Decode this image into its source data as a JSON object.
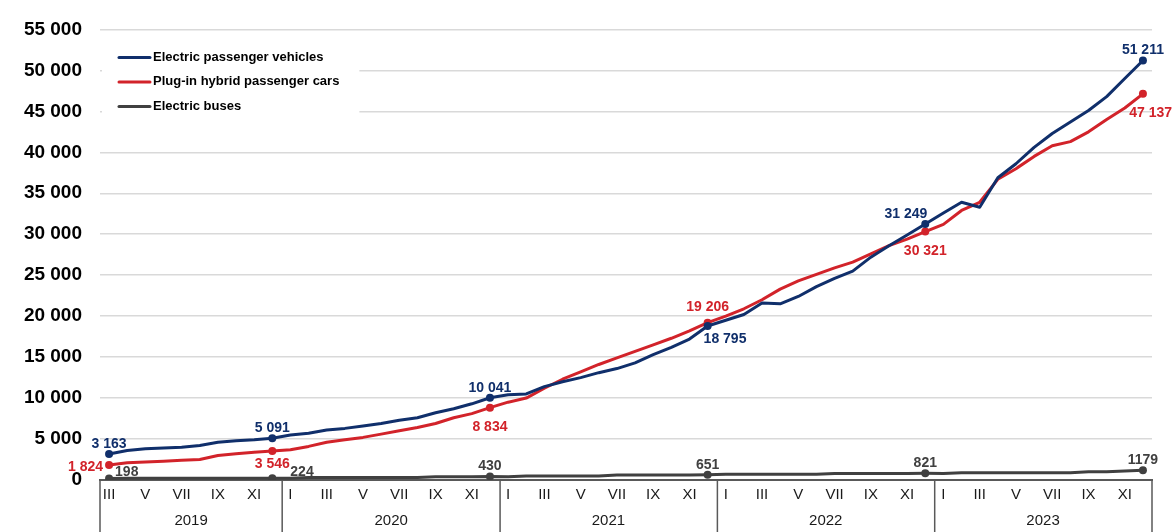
{
  "chart_data": {
    "type": "line",
    "categories": [
      "III",
      null,
      "V",
      null,
      "VII",
      null,
      "IX",
      null,
      "XI",
      null,
      "I",
      null,
      "III",
      null,
      "V",
      null,
      "VII",
      null,
      "IX",
      null,
      "XI",
      null,
      "I",
      null,
      "III",
      null,
      "V",
      null,
      "VII",
      null,
      "IX",
      null,
      "XI",
      null,
      "I",
      null,
      "III",
      null,
      "V",
      null,
      "VII",
      null,
      "IX",
      null,
      "XI",
      null,
      "I",
      null,
      "III",
      null,
      "V",
      null,
      "VII",
      null,
      "IX",
      null,
      "XI",
      null
    ],
    "x2lim": [
      "2019-03-01",
      "2024-01-01"
    ],
    "x2ticks": [
      {
        "value": "2019-08-01",
        "label": "2019"
      },
      {
        "value": "2020-07-02",
        "label": "2020"
      },
      {
        "value": "2021-07-02",
        "label": "2021"
      },
      {
        "value": "2022-07-02",
        "label": "2022"
      },
      {
        "value": "2023-07-02",
        "label": "2023"
      }
    ],
    "ylim": [
      0,
      55000
    ],
    "yticks": [
      0,
      {
        "value": 5000,
        "label": "5 000"
      },
      {
        "value": 10000,
        "label": "10 000"
      },
      {
        "value": 15000,
        "label": "15 000"
      },
      {
        "value": 20000,
        "label": "20 000"
      },
      {
        "value": 25000,
        "label": "25 000"
      },
      {
        "value": 30000,
        "label": "30 000"
      },
      {
        "value": 35000,
        "label": "35 000"
      },
      {
        "value": 40000,
        "label": "40 000"
      },
      {
        "value": 45000,
        "label": "45 000"
      },
      {
        "value": 50000,
        "label": "50 000"
      },
      {
        "value": 55000,
        "label": "55 000"
      }
    ],
    "grid": "y",
    "legend": "top left",
    "series": [
      {
        "name": "Electric passenger vehicles",
        "color": "#102f6b",
        "values": [
          3163,
          3600,
          3800,
          3900,
          4000,
          4200,
          4600,
          4800,
          4900,
          5091,
          5500,
          5700,
          6100,
          6300,
          6600,
          6900,
          7300,
          7600,
          8200,
          8700,
          9300,
          10041,
          10400,
          10500,
          11400,
          12000,
          12500,
          13100,
          13600,
          14300,
          15300,
          16200,
          17200,
          18795,
          19500,
          20200,
          21600,
          21500,
          22400,
          23600,
          24600,
          25500,
          27200,
          28600,
          29900,
          31249,
          32600,
          33900,
          33300,
          36900,
          38600,
          40600,
          42300,
          43700,
          45100,
          46800,
          49000,
          51211
        ],
        "value_labels": [
          "3 163",
          null,
          null,
          null,
          null,
          null,
          null,
          null,
          null,
          "5 091",
          null,
          null,
          null,
          null,
          null,
          null,
          null,
          null,
          null,
          null,
          null,
          "10 041",
          null,
          null,
          null,
          null,
          null,
          null,
          null,
          null,
          null,
          null,
          null,
          "18 795",
          null,
          null,
          null,
          null,
          null,
          null,
          null,
          null,
          null,
          null,
          null,
          "31 249",
          null,
          null,
          null,
          null,
          null,
          null,
          null,
          null,
          null,
          null,
          null,
          "51 211"
        ]
      },
      {
        "name": "Plug-in hybrid passenger cars",
        "color": "#d2232a",
        "values": [
          1824,
          2100,
          2200,
          2300,
          2400,
          2500,
          3000,
          3200,
          3400,
          3546,
          3700,
          4100,
          4600,
          4900,
          5200,
          5600,
          6000,
          6400,
          6900,
          7600,
          8100,
          8834,
          9500,
          10000,
          11200,
          12300,
          13200,
          14100,
          14900,
          15700,
          16500,
          17300,
          18200,
          19206,
          20000,
          20900,
          22000,
          23300,
          24300,
          25100,
          25900,
          26600,
          27600,
          28600,
          29400,
          30321,
          31200,
          32900,
          33900,
          36700,
          38000,
          39500,
          40800,
          41300,
          42500,
          44000,
          45400,
          47137
        ],
        "value_labels": [
          "1 824",
          null,
          null,
          null,
          null,
          null,
          null,
          null,
          null,
          "3 546",
          null,
          null,
          null,
          null,
          null,
          null,
          null,
          null,
          null,
          null,
          null,
          "8 834",
          null,
          null,
          null,
          null,
          null,
          null,
          null,
          null,
          null,
          null,
          null,
          "19 206",
          null,
          null,
          null,
          null,
          null,
          null,
          null,
          null,
          null,
          null,
          null,
          "30 321",
          null,
          null,
          null,
          null,
          null,
          null,
          null,
          null,
          null,
          null,
          null,
          "47 137"
        ]
      },
      {
        "name": "Electric buses",
        "color": "#404040",
        "values": [
          198,
          200,
          200,
          200,
          200,
          200,
          200,
          200,
          200,
          224,
          200,
          300,
          300,
          300,
          300,
          300,
          300,
          300,
          400,
          400,
          400,
          430,
          400,
          500,
          500,
          500,
          500,
          500,
          600,
          600,
          600,
          600,
          600,
          651,
          700,
          700,
          700,
          700,
          700,
          700,
          800,
          800,
          800,
          800,
          800,
          821,
          800,
          900,
          900,
          900,
          900,
          900,
          900,
          900,
          1000,
          1000,
          1100,
          1179
        ],
        "value_labels": [
          "198",
          null,
          null,
          null,
          null,
          null,
          null,
          null,
          null,
          "224",
          null,
          null,
          null,
          null,
          null,
          null,
          null,
          null,
          null,
          null,
          null,
          "430",
          null,
          null,
          null,
          null,
          null,
          null,
          null,
          null,
          null,
          null,
          null,
          "651",
          null,
          null,
          null,
          null,
          null,
          null,
          null,
          null,
          null,
          null,
          null,
          "821",
          null,
          null,
          null,
          null,
          null,
          null,
          null,
          null,
          null,
          null,
          null,
          "1179"
        ]
      }
    ]
  }
}
